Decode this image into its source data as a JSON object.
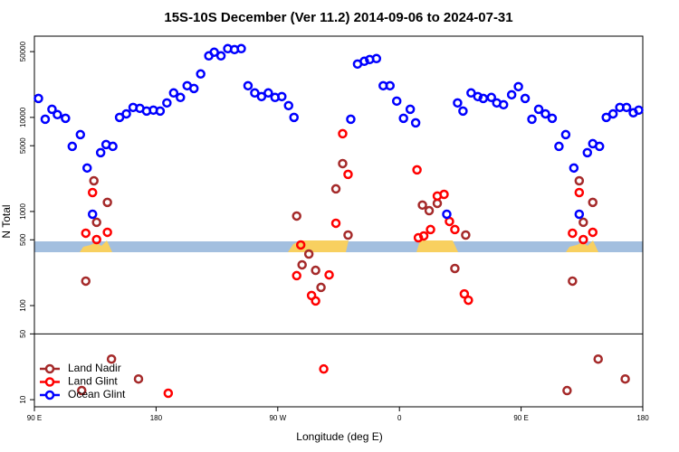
{
  "chart_data": {
    "type": "scatter",
    "title": "15S-10S December (Ver 11.2)   2014-09-06 to 2024-07-31",
    "xlabel": "Longitude (deg E)",
    "ylabel": "N Total",
    "log_y": true,
    "grid": false,
    "legend": "lower left",
    "hline": 50,
    "xlim": [
      90,
      540
    ],
    "xticks": [
      {
        "value": 90,
        "label": "90 E"
      },
      {
        "value": 180,
        "label": "180"
      },
      {
        "value": 270,
        "label": "90 W"
      },
      {
        "value": 360,
        "label": "0"
      },
      {
        "value": 450,
        "label": "90 E"
      },
      {
        "value": 540,
        "label": "180"
      }
    ],
    "ylim": [
      8.4,
      73000
    ],
    "yticks": [
      10,
      50,
      100,
      500,
      1000,
      5000,
      10000,
      50000
    ],
    "series": [
      {
        "name": "Land Nadir",
        "color": "#a52a2a",
        "x": [
          128,
          134,
          136,
          144,
          147,
          167,
          125,
          284,
          288,
          293,
          298,
          302,
          313,
          318,
          322,
          377,
          382,
          388,
          401,
          409,
          484,
          488,
          493,
          496,
          503,
          507,
          527
        ],
        "values": [
          182,
          2120,
          767,
          1250,
          27,
          16.6,
          12.5,
          895,
          271,
          353,
          237,
          156,
          1740,
          3230,
          562,
          1170,
          1020,
          1220,
          248,
          562,
          12.5,
          182,
          2120,
          767,
          1250,
          27,
          16.6
        ]
      },
      {
        "name": "Land Glint",
        "color": "#ff0000",
        "x": [
          128,
          133,
          136,
          144,
          189,
          284,
          287,
          295,
          298,
          304,
          308,
          313,
          318,
          322,
          373,
          374,
          378,
          383,
          388,
          393,
          397,
          401,
          408,
          411,
          488,
          493,
          496,
          503
        ],
        "values": [
          588,
          1590,
          503,
          601,
          11.7,
          208,
          441,
          128,
          112,
          21.2,
          212,
          750,
          6710,
          2480,
          2770,
          526,
          550,
          643,
          1460,
          1520,
          784,
          643,
          133,
          114,
          588,
          1590,
          503,
          601
        ]
      },
      {
        "name": "Ocean Glint",
        "color": "#0000ff",
        "x": [
          93,
          98,
          103,
          107,
          113,
          118,
          124,
          129,
          133,
          139,
          143,
          148,
          153,
          158,
          163,
          168,
          173,
          178,
          183,
          188,
          193,
          198,
          203,
          208,
          213,
          219,
          223,
          228,
          233,
          238,
          243,
          248,
          253,
          258,
          263,
          268,
          273,
          278,
          282,
          324,
          329,
          334,
          338,
          343,
          348,
          353,
          358,
          363,
          368,
          372,
          395,
          403,
          407,
          413,
          418,
          422,
          428,
          432,
          437,
          443,
          448,
          453,
          458,
          463,
          468,
          473,
          478,
          483,
          489,
          493,
          499,
          503,
          508,
          513,
          518,
          523,
          528,
          533,
          537
        ],
        "values": [
          15900,
          9560,
          12200,
          10700,
          9780,
          4920,
          6560,
          2900,
          935,
          4220,
          5150,
          4920,
          10000,
          10900,
          12760,
          12480,
          11680,
          11940,
          11680,
          14250,
          18200,
          16290,
          21700,
          20300,
          28960,
          45070,
          49230,
          45070,
          53800,
          52600,
          53800,
          21700,
          18200,
          16640,
          18200,
          16290,
          16640,
          13340,
          10000,
          9560,
          36900,
          39470,
          41220,
          42170,
          21700,
          21700,
          14900,
          9780,
          12200,
          8750,
          935,
          14250,
          11680,
          18200,
          16640,
          15900,
          16290,
          14250,
          13640,
          17400,
          21230,
          15900,
          9560,
          12200,
          10900,
          9780,
          4920,
          6560,
          2900,
          935,
          4220,
          5260,
          4920,
          10000,
          10900,
          12760,
          12760,
          11200,
          11940
        ]
      }
    ]
  }
}
